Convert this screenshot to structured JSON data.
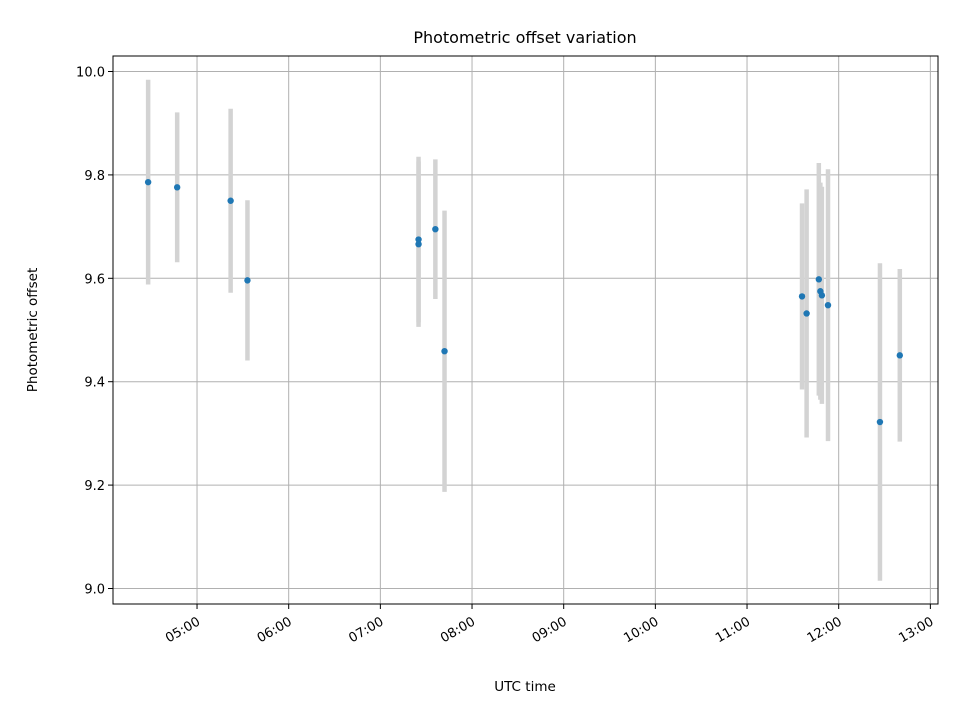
{
  "chart_data": {
    "type": "scatter",
    "title": "Photometric offset variation",
    "xlabel": "UTC time",
    "ylabel": "Photometric offset",
    "x_axis_type": "time",
    "x_tick_labels": [
      "05:00",
      "06:00",
      "07:00",
      "08:00",
      "09:00",
      "10:00",
      "11:00",
      "12:00",
      "13:00"
    ],
    "y_ticks": [
      9.0,
      9.2,
      9.4,
      9.6,
      9.8,
      10.0
    ],
    "y_tick_labels": [
      "9.0",
      "9.2",
      "9.4",
      "9.6",
      "9.8",
      "10.0"
    ],
    "xlim": [
      "04:05",
      "13:05"
    ],
    "ylim": [
      8.97,
      10.03
    ],
    "grid": true,
    "marker_color": "#1f77b4",
    "errorbar_color": "#d3d3d3",
    "points": [
      {
        "x": "04:28",
        "y": 9.786,
        "err": 0.198
      },
      {
        "x": "04:47",
        "y": 9.776,
        "err": 0.145
      },
      {
        "x": "05:22",
        "y": 9.75,
        "err": 0.178
      },
      {
        "x": "05:33",
        "y": 9.596,
        "err": 0.155
      },
      {
        "x": "07:25",
        "y": 9.675,
        "err": 0.16
      },
      {
        "x": "07:25",
        "y": 9.666,
        "err": 0.16
      },
      {
        "x": "07:36",
        "y": 9.695,
        "err": 0.135
      },
      {
        "x": "07:42",
        "y": 9.459,
        "err": 0.272
      },
      {
        "x": "11:36",
        "y": 9.565,
        "err": 0.18
      },
      {
        "x": "11:39",
        "y": 9.532,
        "err": 0.24
      },
      {
        "x": "11:47",
        "y": 9.598,
        "err": 0.225
      },
      {
        "x": "11:48",
        "y": 9.575,
        "err": 0.21
      },
      {
        "x": "11:49",
        "y": 9.567,
        "err": 0.21
      },
      {
        "x": "11:53",
        "y": 9.548,
        "err": 0.263
      },
      {
        "x": "12:27",
        "y": 9.322,
        "err": 0.307
      },
      {
        "x": "12:40",
        "y": 9.451,
        "err": 0.167
      }
    ]
  }
}
